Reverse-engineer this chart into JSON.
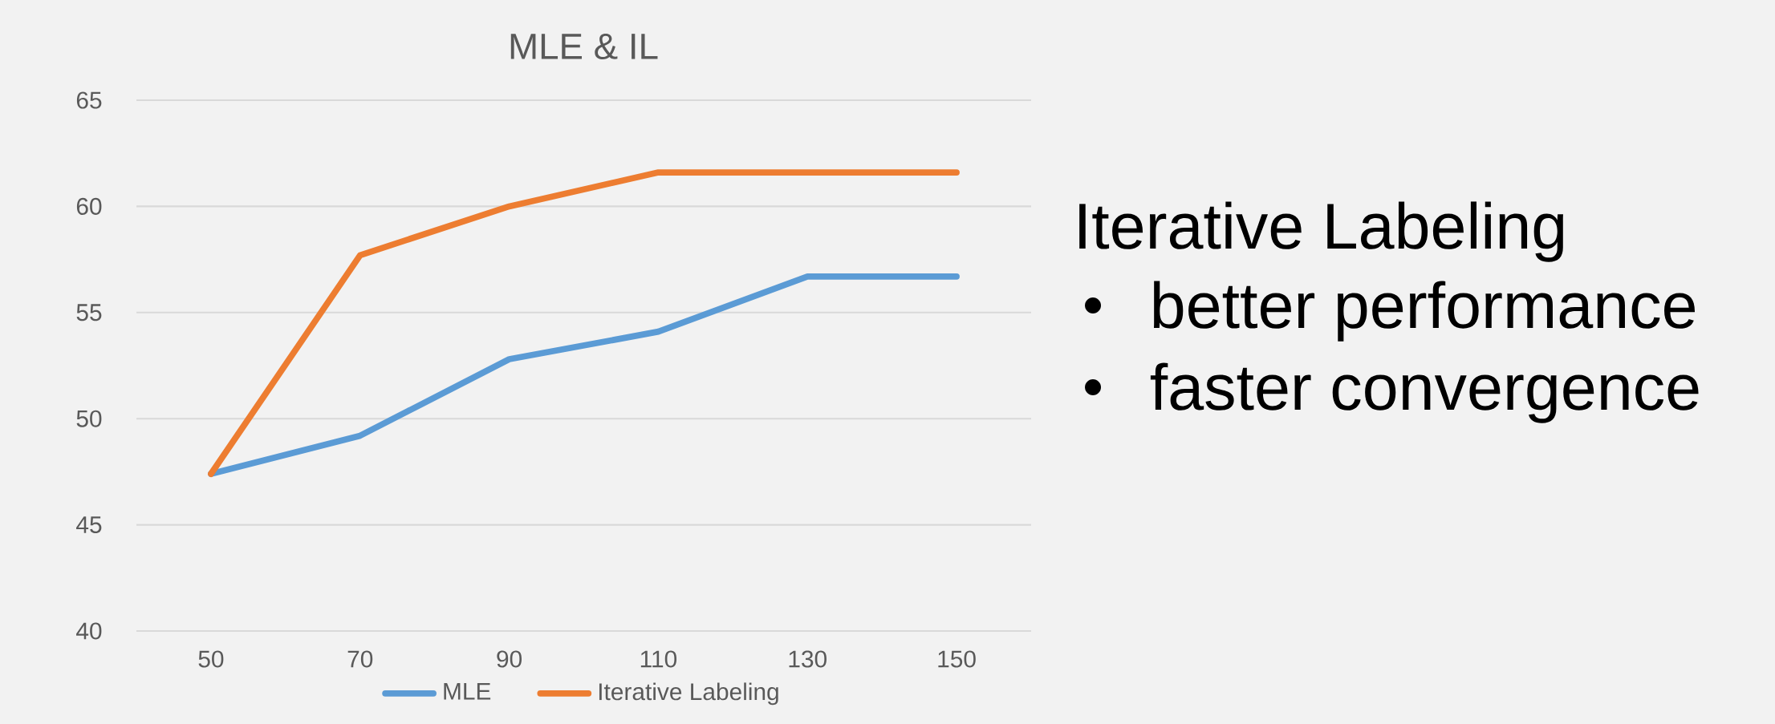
{
  "chart_data": {
    "type": "line",
    "title": "MLE & IL",
    "categories": [
      "50",
      "70",
      "90",
      "110",
      "130",
      "150"
    ],
    "series": [
      {
        "name": "MLE",
        "color": "#5b9bd5",
        "values": [
          47.4,
          49.2,
          52.8,
          54.1,
          56.7,
          56.7
        ]
      },
      {
        "name": "Iterative Labeling",
        "color": "#ed7d31",
        "values": [
          47.4,
          57.7,
          60.0,
          61.6,
          61.6,
          61.6
        ]
      }
    ],
    "ylim": [
      40,
      65
    ],
    "yticks": [
      40,
      45,
      50,
      55,
      60,
      65
    ],
    "grid": "y",
    "legend": "bottom",
    "marker": "none",
    "line_style": "solid",
    "annotations": [
      "Iterative Labeling",
      "better performance",
      "faster convergence"
    ]
  }
}
